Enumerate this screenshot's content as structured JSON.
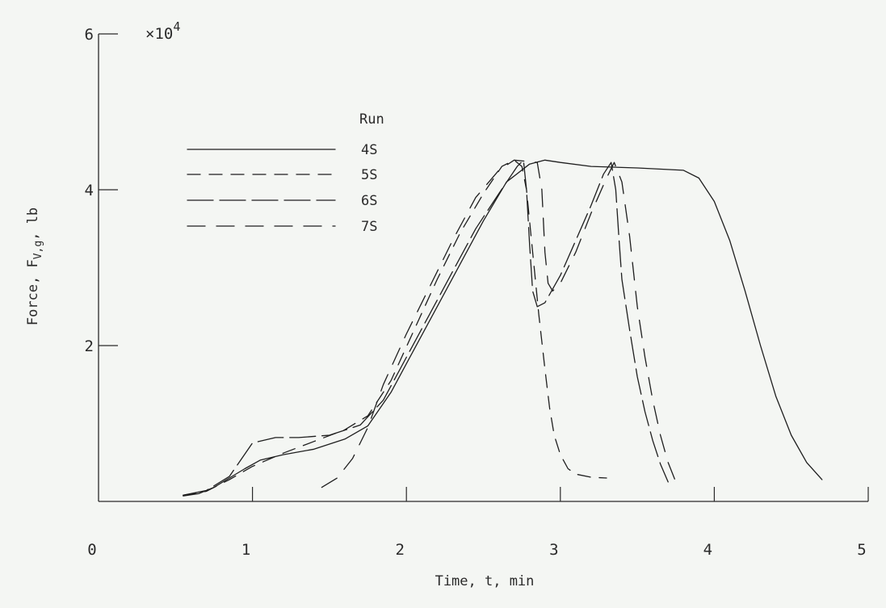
{
  "chart_data": {
    "type": "line",
    "xlabel": "Time, t, min",
    "ylabel": "Force, F",
    "ylabel_sub": "V,g",
    "ylabel_unit": ", lb",
    "y_multiplier": "×10",
    "y_multiplier_exp": "4",
    "xlim": [
      0,
      5
    ],
    "ylim": [
      0,
      6
    ],
    "x_ticks": [
      0,
      1,
      2,
      3,
      4,
      5
    ],
    "x_tick_labels": [
      "0",
      "1",
      "2",
      "3",
      "4",
      "5"
    ],
    "y_ticks": [
      2,
      4,
      6
    ],
    "y_tick_labels": [
      "2",
      "4",
      "6"
    ],
    "grid": false,
    "legend_title": "Run",
    "legend_position": "top-left",
    "series": [
      {
        "name": "4S",
        "dash": "solid",
        "x": [
          0.55,
          0.65,
          0.75,
          0.85,
          0.95,
          1.05,
          1.2,
          1.4,
          1.6,
          1.75,
          1.9,
          2.05,
          2.2,
          2.35,
          2.5,
          2.65,
          2.8,
          2.9,
          3.0,
          3.2,
          3.5,
          3.8,
          3.9,
          4.0,
          4.1,
          4.2,
          4.3,
          4.4,
          4.5,
          4.6,
          4.7
        ],
        "y": [
          0.07,
          0.1,
          0.18,
          0.3,
          0.42,
          0.53,
          0.6,
          0.67,
          0.8,
          0.97,
          1.4,
          1.95,
          2.5,
          3.05,
          3.6,
          4.1,
          4.33,
          4.38,
          4.35,
          4.3,
          4.28,
          4.25,
          4.15,
          3.85,
          3.35,
          2.7,
          2.0,
          1.35,
          0.85,
          0.5,
          0.28
        ]
      },
      {
        "name": "5S",
        "dash": "16,11",
        "x": [
          0.55,
          0.7,
          0.85,
          1.0,
          1.2,
          1.4,
          1.6,
          1.75,
          1.9,
          2.05,
          2.2,
          2.35,
          2.5,
          2.62,
          2.7,
          2.75,
          2.78,
          2.8,
          2.83,
          2.86,
          2.9,
          2.93,
          2.96,
          3.0,
          3.05,
          3.1,
          3.2,
          3.3
        ],
        "y": [
          0.08,
          0.13,
          0.28,
          0.45,
          0.62,
          0.77,
          0.92,
          1.1,
          1.55,
          2.2,
          2.85,
          3.45,
          3.95,
          4.3,
          4.38,
          4.3,
          4.0,
          3.6,
          3.0,
          2.4,
          1.7,
          1.2,
          0.85,
          0.6,
          0.42,
          0.35,
          0.31,
          0.3
        ]
      },
      {
        "name": "6S",
        "dash": "32,8",
        "x": [
          0.55,
          0.7,
          0.85,
          1.0,
          1.15,
          1.3,
          1.5,
          1.7,
          1.85,
          2.0,
          2.15,
          2.3,
          2.45,
          2.6,
          2.72,
          2.76,
          2.78,
          2.8,
          2.82,
          2.85,
          2.9,
          3.0,
          3.1,
          3.2,
          3.28,
          3.33,
          3.36,
          3.38,
          3.4,
          3.45,
          3.5,
          3.55,
          3.6,
          3.65,
          3.7
        ],
        "y": [
          0.08,
          0.14,
          0.32,
          0.75,
          0.82,
          0.82,
          0.85,
          0.98,
          1.3,
          1.85,
          2.4,
          2.95,
          3.5,
          3.95,
          4.3,
          4.38,
          4.0,
          3.3,
          2.7,
          2.5,
          2.55,
          2.9,
          3.35,
          3.8,
          4.2,
          4.35,
          4.0,
          3.4,
          2.85,
          2.2,
          1.6,
          1.15,
          0.78,
          0.48,
          0.25
        ]
      },
      {
        "name": "7S",
        "dash": "22,14",
        "x": [
          1.45,
          1.55,
          1.65,
          1.75,
          1.85,
          2.0,
          2.15,
          2.3,
          2.45,
          2.6,
          2.7,
          2.85,
          2.88,
          2.9,
          2.92,
          2.95,
          3.0,
          3.1,
          3.2,
          3.3,
          3.35,
          3.4,
          3.45,
          3.5,
          3.55,
          3.6,
          3.65,
          3.7,
          3.75
        ],
        "y": [
          0.18,
          0.3,
          0.55,
          0.95,
          1.5,
          2.15,
          2.75,
          3.35,
          3.9,
          4.25,
          4.38,
          4.35,
          4.0,
          3.2,
          2.8,
          2.7,
          2.8,
          3.2,
          3.7,
          4.15,
          4.35,
          4.1,
          3.4,
          2.5,
          1.85,
          1.3,
          0.85,
          0.5,
          0.25
        ]
      }
    ]
  }
}
